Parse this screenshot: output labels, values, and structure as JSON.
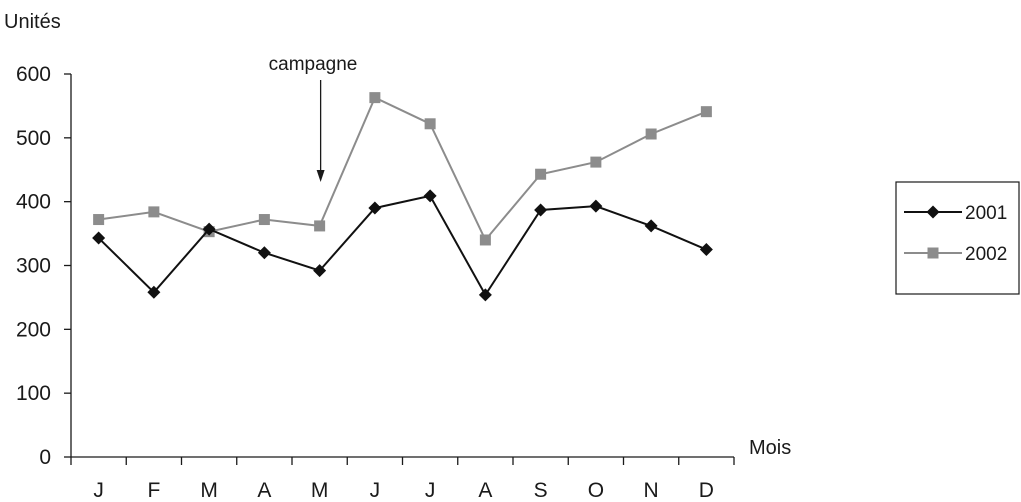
{
  "chart_data": {
    "type": "line",
    "title": "",
    "ylabel": "Unités",
    "xlabel": "Mois",
    "categories": [
      "J",
      "F",
      "M",
      "A",
      "M",
      "J",
      "J",
      "A",
      "S",
      "O",
      "N",
      "D"
    ],
    "ylim": [
      0,
      600
    ],
    "yticks": [
      "0",
      "100",
      "200",
      "300",
      "400",
      "500",
      "600"
    ],
    "grid": false,
    "legend_position": "right",
    "series": [
      {
        "name": "2001",
        "color": "#111111",
        "marker": "diamond",
        "values": [
          343,
          258,
          357,
          320,
          292,
          390,
          409,
          254,
          387,
          393,
          362,
          325
        ]
      },
      {
        "name": "2002",
        "color": "#8c8c8c",
        "marker": "square",
        "values": [
          372,
          384,
          353,
          372,
          362,
          563,
          522,
          340,
          443,
          462,
          506,
          541
        ]
      }
    ],
    "annotation": {
      "text": "campagne",
      "category_index": 4
    }
  }
}
